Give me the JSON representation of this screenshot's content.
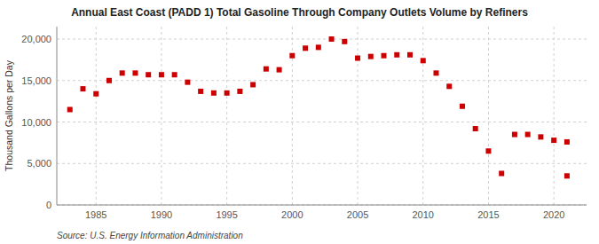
{
  "chart_data": {
    "type": "scatter",
    "title": "Annual East Coast (PADD 1) Total Gasoline Through Company Outlets Volume by Refiners",
    "y_label": "Thousand Gallons per Day",
    "source": "Source: U.S. Energy Information Administration",
    "x": [
      1983,
      1984,
      1985,
      1986,
      1987,
      1988,
      1989,
      1990,
      1991,
      1992,
      1993,
      1994,
      1995,
      1996,
      1997,
      1998,
      1999,
      2000,
      2001,
      2002,
      2003,
      2004,
      2005,
      2006,
      2007,
      2008,
      2009,
      2010,
      2011,
      2012,
      2013,
      2014,
      2015,
      2016,
      2017,
      2018,
      2019,
      2020,
      2021,
      2021
    ],
    "values": [
      11500,
      14000,
      13400,
      15000,
      15900,
      15900,
      15700,
      15700,
      15700,
      14800,
      13700,
      13500,
      13500,
      13700,
      14500,
      16400,
      16300,
      18000,
      18900,
      19000,
      20000,
      19700,
      17700,
      17900,
      18000,
      18100,
      18100,
      17400,
      15900,
      14300,
      11900,
      9200,
      6500,
      3800,
      8500,
      8500,
      8200,
      7800,
      7600,
      3500
    ],
    "color": "#cc0000",
    "marker": "square",
    "xlim": [
      1982,
      2022.5
    ],
    "xticks": [
      1985,
      1990,
      1995,
      2000,
      2005,
      2010,
      2015,
      2020
    ],
    "ylim": [
      0,
      21500
    ],
    "yticks": [
      0,
      {
        "value": 5000,
        "label": "5,000"
      },
      {
        "value": 10000,
        "label": "10,000"
      },
      {
        "value": 15000,
        "label": "15,000"
      },
      {
        "value": 20000,
        "label": "20,000"
      }
    ],
    "grid": true
  }
}
